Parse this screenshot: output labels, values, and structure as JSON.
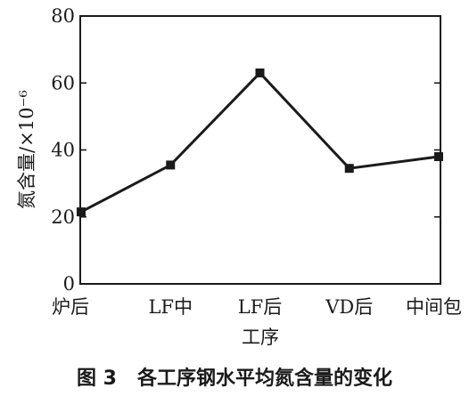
{
  "chart_data": {
    "type": "line",
    "categories": [
      "炉后",
      "LF中",
      "LF后",
      "VD后",
      "中间包"
    ],
    "series": [
      {
        "values": [
          21.5,
          35.5,
          63,
          34.5,
          38
        ]
      }
    ],
    "xlabel": "工序",
    "ylabel": "氮含量/×10⁻⁶",
    "ylim": [
      0,
      80
    ],
    "yticks": [
      0,
      20,
      40,
      60,
      80
    ],
    "grid": false,
    "legend": "none",
    "color": "#1a1a1a"
  },
  "caption": "图 3   各工序钢水平均氮含量的变化"
}
